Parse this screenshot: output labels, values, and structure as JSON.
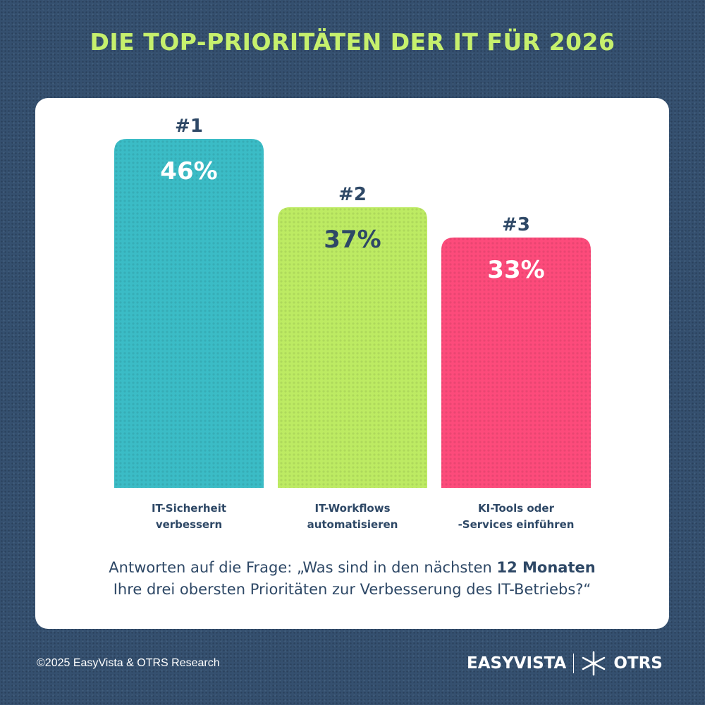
{
  "title": "DIE TOP-PRIORITÄTEN DER IT FÜR 2026",
  "chart_data": {
    "type": "bar",
    "categories": [
      "IT-Sicherheit verbessern",
      "IT-Workflows automatisieren",
      "KI-Tools oder -Services einführen"
    ],
    "category_lines": [
      [
        "IT-Sicherheit",
        "verbessern"
      ],
      [
        "IT-Workflows",
        "automatisieren"
      ],
      [
        "KI-Tools oder",
        "-Services einführen"
      ]
    ],
    "values": [
      46,
      37,
      33
    ],
    "value_labels": [
      "46%",
      "37%",
      "33%"
    ],
    "ranks": [
      "#1",
      "#2",
      "#3"
    ],
    "colors": [
      "#3bbcc6",
      "#bdeb63",
      "#fd4b7b"
    ],
    "label_colors": [
      "#ffffff",
      "#2e4866",
      "#ffffff"
    ],
    "ylim": [
      0,
      50
    ],
    "grid": false
  },
  "question": {
    "prefix": "Antworten auf die Frage: „Was sind in den nächsten ",
    "bold": "12 Monaten",
    "suffix": "Ihre drei obersten Prioritäten zur Verbesserung des IT-Betriebs?“"
  },
  "footer": {
    "copyright": "©2025 EasyVista & OTRS Research",
    "logo_easyvista": "EASYVISTA",
    "logo_otrs": "OTRS"
  }
}
